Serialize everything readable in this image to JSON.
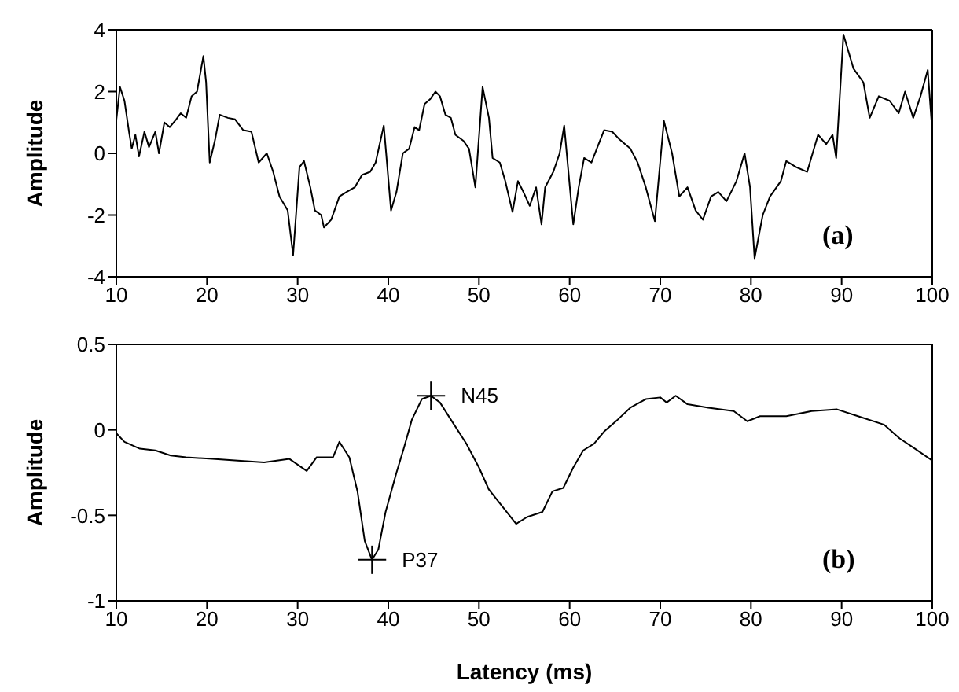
{
  "chart_data": [
    {
      "type": "line",
      "ylabel": "Amplitude",
      "xlim": [
        10,
        100
      ],
      "ylim": [
        -4,
        4
      ],
      "xticks": [
        10,
        20,
        30,
        40,
        50,
        60,
        70,
        80,
        90,
        100
      ],
      "yticks": [
        -4,
        -2,
        0,
        2,
        4
      ],
      "grid": false,
      "legend": false,
      "marker": "none",
      "line_style": "solid",
      "annotations": [
        "(a)"
      ],
      "x": [
        10,
        10.4,
        10.9,
        11.4,
        11.7,
        12.1,
        12.5,
        13.1,
        13.6,
        14.3,
        14.7,
        15.3,
        15.9,
        16.6,
        17.1,
        17.7,
        18.3,
        18.9,
        19.6,
        19.9,
        20.3,
        20.9,
        21.4,
        22.3,
        23.1,
        24,
        24.9,
        25.7,
        26.6,
        27.3,
        28,
        28.9,
        29.5,
        30.2,
        30.7,
        31.4,
        31.9,
        32.6,
        32.9,
        33.7,
        34.6,
        35.4,
        36.3,
        37.1,
        38,
        38.6,
        39.5,
        40.3,
        40.9,
        41.6,
        42.3,
        42.9,
        43.4,
        44,
        44.6,
        45.2,
        45.7,
        46.3,
        46.9,
        47.4,
        48.3,
        48.9,
        49.6,
        50.4,
        51.1,
        51.5,
        52.3,
        52.9,
        53.7,
        54.3,
        54.9,
        55.6,
        56.3,
        56.9,
        57.3,
        58.2,
        58.9,
        59.4,
        60.4,
        61,
        61.6,
        62.4,
        63,
        63.8,
        64.7,
        65.5,
        66.7,
        67.5,
        68.4,
        69.4,
        70.4,
        71.3,
        72.1,
        73,
        73.9,
        74.7,
        75.6,
        76.4,
        77.3,
        78.4,
        79.3,
        79.9,
        80.4,
        81.3,
        82.1,
        83.3,
        83.9,
        85,
        86.2,
        87.4,
        88.3,
        89,
        89.4,
        90.2,
        91.3,
        92.4,
        93.1,
        94.1,
        95.3,
        96.3,
        97,
        97.9,
        98.7,
        99.5,
        100
      ],
      "series": [
        {
          "color": "#000000",
          "values": [
            1.08,
            2.15,
            1.7,
            0.7,
            0.15,
            0.6,
            -0.1,
            0.7,
            0.2,
            0.7,
            0,
            1,
            0.85,
            1.1,
            1.3,
            1.15,
            1.85,
            2,
            3.15,
            2.3,
            -0.3,
            0.45,
            1.25,
            1.15,
            1.1,
            0.75,
            0.7,
            -0.3,
            0,
            -0.6,
            -1.4,
            -1.85,
            -3.3,
            -0.45,
            -0.25,
            -1.1,
            -1.85,
            -2,
            -2.4,
            -2.15,
            -1.4,
            -1.25,
            -1.1,
            -0.7,
            -0.6,
            -0.3,
            0.9,
            -1.85,
            -1.25,
            0,
            0.15,
            0.85,
            0.75,
            1.6,
            1.75,
            2,
            1.85,
            1.25,
            1.15,
            0.6,
            0.4,
            0.15,
            -1.1,
            2.15,
            1.15,
            -0.15,
            -0.3,
            -0.9,
            -1.9,
            -0.9,
            -1.25,
            -1.7,
            -1.1,
            -2.3,
            -1.1,
            -0.6,
            0,
            0.9,
            -2.3,
            -1.1,
            -0.15,
            -0.3,
            0.15,
            0.75,
            0.7,
            0.45,
            0.15,
            -0.3,
            -1.1,
            -2.2,
            1.05,
            0,
            -1.4,
            -1.1,
            -1.85,
            -2.15,
            -1.4,
            -1.25,
            -1.55,
            -0.9,
            0,
            -1.1,
            -3.4,
            -2,
            -1.4,
            -0.9,
            -0.25,
            -0.45,
            -0.6,
            0.6,
            0.3,
            0.6,
            -0.15,
            3.85,
            2.75,
            2.3,
            1.15,
            1.85,
            1.7,
            1.3,
            2,
            1.15,
            1.85,
            2.7,
            0.7
          ]
        }
      ]
    },
    {
      "type": "line",
      "xlabel": "Latency (ms)",
      "ylabel": "Amplitude",
      "xlim": [
        10,
        100
      ],
      "ylim": [
        -1,
        0.5
      ],
      "xticks": [
        10,
        20,
        30,
        40,
        50,
        60,
        70,
        80,
        90,
        100
      ],
      "yticks": [
        -1,
        -0.5,
        0,
        0.5
      ],
      "grid": false,
      "legend": false,
      "marker": "none",
      "line_style": "solid",
      "annotations": [
        "(b)",
        {
          "text": "N45",
          "x": 44.7,
          "y": 0.2
        },
        {
          "text": "P37",
          "x": 38.2,
          "y": -0.76
        }
      ],
      "x": [
        10,
        10.9,
        12.6,
        14.3,
        16,
        17.7,
        20.6,
        23.4,
        26.3,
        29.1,
        31,
        32.1,
        33.9,
        34.6,
        35.7,
        36.6,
        37.4,
        38.2,
        38.9,
        39.7,
        40.9,
        41.7,
        42.6,
        43.7,
        44.7,
        45.7,
        46.9,
        48.6,
        50,
        51.1,
        52.6,
        54.1,
        55.3,
        57,
        58.1,
        59.3,
        60.4,
        61.5,
        62.7,
        63.8,
        65.3,
        66.7,
        68.4,
        70,
        70.7,
        71.7,
        73,
        75.3,
        78.1,
        79.6,
        81,
        83.9,
        86.7,
        89.5,
        91.8,
        94.7,
        96.4,
        98.1,
        100
      ],
      "series": [
        {
          "color": "#000000",
          "values": [
            -0.02,
            -0.07,
            -0.11,
            -0.12,
            -0.15,
            -0.16,
            -0.17,
            -0.18,
            -0.19,
            -0.17,
            -0.24,
            -0.16,
            -0.16,
            -0.07,
            -0.16,
            -0.36,
            -0.65,
            -0.76,
            -0.7,
            -0.48,
            -0.25,
            -0.11,
            0.06,
            0.18,
            0.2,
            0.16,
            0.06,
            -0.08,
            -0.22,
            -0.35,
            -0.45,
            -0.55,
            -0.51,
            -0.48,
            -0.36,
            -0.34,
            -0.22,
            -0.12,
            -0.08,
            -0.01,
            0.06,
            0.13,
            0.18,
            0.19,
            0.16,
            0.2,
            0.15,
            0.13,
            0.11,
            0.05,
            0.08,
            0.08,
            0.11,
            0.12,
            0.08,
            0.03,
            -0.05,
            -0.11,
            -0.18
          ]
        }
      ]
    }
  ]
}
